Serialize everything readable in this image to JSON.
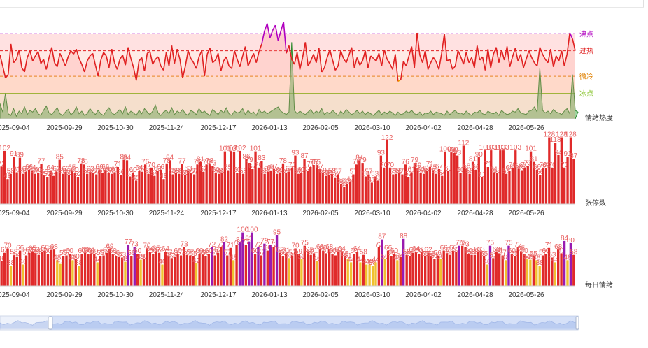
{
  "chart_data": [
    {
      "type": "line",
      "name": "sentiment-heat",
      "series_label": "情绪热度",
      "x_ticks": [
        "2025-09-04",
        "2025-09-29",
        "2025-10-30",
        "2025-11-24",
        "2025-12-17",
        "2026-01-13",
        "2026-02-05",
        "2026-03-10",
        "2026-04-02",
        "2026-04-28",
        "2026-05-26"
      ],
      "thresholds": [
        {
          "label": "沸点",
          "color": "#b000c0",
          "value": 100
        },
        {
          "label": "过热",
          "color": "#e02020",
          "value": 80
        },
        {
          "label": "微冷",
          "color": "#e08000",
          "value": 50
        },
        {
          "label": "冰点",
          "color": "#80c020",
          "value": 30
        }
      ],
      "ylim": [
        0,
        115
      ],
      "zones": [
        {
          "from": 80,
          "to": 115,
          "color": "#ffc8c8"
        },
        {
          "from": 50,
          "to": 80,
          "color": "#ffd8d0"
        },
        {
          "from": 30,
          "to": 50,
          "color": "#ffe8c0"
        },
        {
          "from": 0,
          "to": 30,
          "color": "#e8f5c8"
        }
      ],
      "series": [
        {
          "role": "heat",
          "color_high": "#b000c0",
          "color_mid": "#e02020",
          "color_low": "#f0a000",
          "values": [
            75,
            62,
            48,
            52,
            88,
            66,
            70,
            81,
            60,
            55,
            72,
            80,
            68,
            74,
            79,
            65,
            70,
            58,
            72,
            84,
            66,
            61,
            77,
            70,
            62,
            73,
            80,
            76,
            82,
            71,
            64,
            55,
            68,
            74,
            77,
            63,
            50,
            69,
            78,
            74,
            60,
            82,
            66,
            58,
            70,
            75,
            63,
            84,
            71,
            60,
            45,
            68,
            72,
            56,
            77,
            79,
            64,
            70,
            73,
            62,
            57,
            78,
            62,
            86,
            65,
            82,
            70,
            48,
            62,
            80,
            71,
            66,
            59,
            73,
            80,
            50,
            76,
            83,
            66,
            69,
            77,
            56,
            68,
            73,
            62,
            59,
            80,
            70,
            61,
            74,
            85,
            62,
            70,
            77,
            66,
            79,
            88,
            103,
            112,
            95,
            104,
            110,
            92,
            103,
            114,
            77,
            86,
            70,
            64,
            78,
            58,
            72,
            90,
            62,
            68,
            76,
            66,
            83,
            55,
            60,
            72,
            81,
            69,
            57,
            62,
            80,
            71,
            66,
            75,
            84,
            60,
            72,
            63,
            68,
            80,
            60,
            74,
            71,
            68,
            77,
            62,
            81,
            70,
            65,
            58,
            76,
            44,
            46,
            68,
            62,
            74,
            85,
            60,
            101,
            75,
            66,
            80,
            58,
            66,
            72,
            67,
            58,
            77,
            100,
            68,
            70,
            58,
            62,
            80,
            73,
            64,
            78,
            66,
            72,
            60,
            86,
            69,
            73,
            57,
            82,
            60,
            76,
            84,
            66,
            81,
            69,
            85,
            61,
            73,
            83,
            68,
            76,
            60,
            70,
            80,
            72,
            66,
            62,
            84,
            76,
            70,
            66,
            82,
            61,
            74,
            68,
            80,
            62,
            76,
            101,
            94,
            80
          ]
        },
        {
          "role": "base",
          "color": "#2e8b2e",
          "values": [
            18,
            8,
            30,
            6,
            4,
            12,
            3,
            9,
            6,
            14,
            5,
            10,
            8,
            12,
            6,
            4,
            10,
            15,
            7,
            5,
            9,
            13,
            6,
            4,
            8,
            11,
            5,
            7,
            14,
            6,
            9,
            4,
            6,
            12,
            8,
            5,
            10,
            6,
            4,
            9,
            13,
            7,
            5,
            8,
            11,
            6,
            14,
            5,
            9,
            7,
            4,
            10,
            6,
            12,
            8,
            5,
            9,
            16,
            7,
            4,
            8,
            10,
            6,
            13,
            5,
            9,
            7,
            11,
            6,
            4,
            10,
            8,
            5,
            12,
            7,
            9,
            6,
            4,
            11,
            8,
            5,
            10,
            7,
            13,
            6,
            4,
            9,
            7,
            8,
            12,
            5,
            10,
            6,
            8,
            4,
            11,
            7,
            9,
            6,
            8,
            10,
            12,
            14,
            9,
            7,
            5,
            8,
            90,
            10,
            6,
            9,
            7,
            5,
            8,
            11,
            6,
            9,
            7,
            12,
            5,
            8,
            6,
            10,
            7,
            4,
            9,
            6,
            11,
            8,
            5,
            7,
            10,
            6,
            9,
            5,
            8,
            6,
            4,
            7,
            10,
            5,
            8,
            6,
            9,
            7,
            4,
            8,
            5,
            6,
            9,
            7,
            10,
            6,
            5,
            8,
            4,
            7,
            6,
            9,
            5,
            8,
            7,
            6,
            4,
            9,
            5,
            8,
            10,
            6,
            7,
            5,
            9,
            6,
            4,
            8,
            7,
            10,
            6,
            5,
            9,
            7,
            6,
            8,
            4,
            10,
            7,
            5,
            6,
            9,
            8,
            12,
            7,
            6,
            5,
            9,
            10,
            14,
            8,
            60,
            10,
            7,
            9,
            6,
            11,
            8,
            7,
            5,
            9,
            12,
            6,
            52,
            10,
            8
          ]
        }
      ]
    },
    {
      "type": "bar",
      "name": "limit-up-count",
      "series_label": "张停数",
      "x_ticks": [
        "2025-09-04",
        "2025-09-29",
        "2025-10-30",
        "2025-11-24",
        "2025-12-17",
        "2026-01-13",
        "2026-02-05",
        "2026-03-10",
        "2026-04-02",
        "2026-04-28",
        "2026-05-26"
      ],
      "ylim": [
        0,
        130
      ],
      "color": "#e02a2a",
      "label_color": "#e86060",
      "values": [
        72,
        102,
        48,
        58,
        91,
        61,
        89,
        58,
        62,
        66,
        64,
        58,
        60,
        77,
        56,
        52,
        64,
        54,
        62,
        85,
        58,
        62,
        55,
        65,
        60,
        52,
        78,
        76,
        58,
        62,
        59,
        57,
        66,
        59,
        66,
        60,
        58,
        61,
        71,
        56,
        85,
        84,
        53,
        60,
        45,
        64,
        62,
        76,
        58,
        70,
        54,
        63,
        66,
        48,
        78,
        84,
        57,
        59,
        58,
        77,
        55,
        63,
        59,
        57,
        76,
        81,
        62,
        76,
        78,
        73,
        60,
        58,
        59,
        101,
        65,
        102,
        100,
        60,
        102,
        58,
        86,
        79,
        67,
        101,
        70,
        83,
        58,
        62,
        64,
        67,
        58,
        60,
        78,
        59,
        62,
        70,
        93,
        58,
        60,
        87,
        63,
        71,
        75,
        75,
        67,
        59,
        54,
        55,
        58,
        50,
        57,
        38,
        33,
        38,
        42,
        57,
        76,
        84,
        79,
        53,
        57,
        41,
        53,
        45,
        93,
        70,
        122,
        70,
        57,
        58,
        59,
        57,
        76,
        52,
        61,
        79,
        69,
        60,
        58,
        63,
        71,
        65,
        58,
        67,
        54,
        100,
        63,
        99,
        98,
        93,
        60,
        112,
        68,
        58,
        81,
        66,
        90,
        51,
        103,
        71,
        103,
        61,
        59,
        103,
        103,
        58,
        64,
        70,
        103,
        68,
        65,
        70,
        73,
        101,
        81,
        66,
        56,
        70,
        69,
        128,
        70,
        118,
        94,
        128,
        70,
        91,
        128,
        87
      ]
    },
    {
      "type": "bar",
      "name": "daily-sentiment",
      "series_label": "每日情绪",
      "x_ticks": [
        "2025-09-04",
        "2025-09-29",
        "2025-10-30",
        "2025-11-24",
        "2025-12-17",
        "2026-01-13",
        "2026-02-05",
        "2026-03-10",
        "2026-04-02",
        "2026-04-28",
        "2026-05-26"
      ],
      "ylim": [
        0,
        110
      ],
      "colors": {
        "hot": "#9a1ab0",
        "warm": "#e02a2a",
        "cool": "#f0c030"
      },
      "label_color": "#e86060",
      "values": [
        46,
        62,
        70,
        38,
        58,
        54,
        66,
        40,
        57,
        62,
        65,
        62,
        58,
        63,
        66,
        60,
        67,
        68,
        48,
        41,
        56,
        57,
        60,
        48,
        50,
        38,
        60,
        62,
        60,
        61,
        59,
        44,
        56,
        57,
        62,
        69,
        60,
        56,
        54,
        53,
        45,
        77,
        56,
        73,
        60,
        49,
        50,
        70,
        64,
        60,
        65,
        62,
        40,
        64,
        57,
        52,
        54,
        60,
        57,
        73,
        58,
        57,
        55,
        42,
        60,
        59,
        56,
        60,
        72,
        57,
        62,
        72,
        82,
        57,
        71,
        48,
        76,
        81,
        100,
        77,
        83,
        100,
        60,
        72,
        57,
        79,
        66,
        77,
        72,
        95,
        62,
        56,
        61,
        52,
        57,
        70,
        59,
        50,
        75,
        63,
        58,
        61,
        46,
        68,
        66,
        61,
        68,
        60,
        57,
        63,
        64,
        55,
        51,
        44,
        60,
        64,
        44,
        58,
        40,
        40,
        38,
        44,
        72,
        87,
        50,
        66,
        56,
        60,
        48,
        54,
        88,
        58,
        55,
        62,
        64,
        60,
        63,
        55,
        62,
        55,
        51,
        56,
        50,
        66,
        62,
        58,
        66,
        63,
        75,
        75,
        73,
        60,
        58,
        58,
        63,
        63,
        55,
        40,
        75,
        52,
        63,
        61,
        57,
        48,
        75,
        60,
        55,
        72,
        65,
        60,
        50,
        49,
        55,
        48,
        38,
        57,
        60,
        71,
        53,
        44,
        68,
        61,
        84,
        48,
        80,
        58
      ],
      "levels": [
        1,
        1,
        1,
        2,
        1,
        1,
        1,
        2,
        1,
        1,
        1,
        1,
        1,
        1,
        1,
        1,
        1,
        1,
        2,
        2,
        1,
        1,
        1,
        2,
        1,
        2,
        1,
        1,
        1,
        1,
        1,
        2,
        1,
        1,
        1,
        1,
        1,
        1,
        1,
        1,
        2,
        0,
        1,
        0,
        1,
        2,
        1,
        1,
        1,
        1,
        1,
        1,
        2,
        1,
        1,
        1,
        1,
        1,
        1,
        1,
        1,
        1,
        1,
        2,
        1,
        1,
        1,
        1,
        0,
        1,
        1,
        1,
        0,
        1,
        1,
        2,
        1,
        0,
        0,
        1,
        0,
        0,
        1,
        0,
        1,
        0,
        1,
        0,
        1,
        0,
        1,
        1,
        1,
        2,
        1,
        1,
        1,
        2,
        1,
        1,
        1,
        1,
        2,
        1,
        1,
        1,
        1,
        1,
        1,
        1,
        1,
        1,
        2,
        2,
        1,
        1,
        2,
        1,
        2,
        2,
        2,
        2,
        1,
        0,
        2,
        1,
        1,
        1,
        2,
        1,
        0,
        1,
        1,
        1,
        1,
        1,
        1,
        1,
        1,
        1,
        1,
        1,
        2,
        1,
        1,
        1,
        1,
        1,
        0,
        1,
        1,
        1,
        1,
        1,
        1,
        1,
        1,
        2,
        0,
        1,
        1,
        1,
        1,
        2,
        0,
        1,
        1,
        1,
        1,
        1,
        2,
        2,
        1,
        2,
        2,
        1,
        1,
        1,
        1,
        2,
        1,
        1,
        0,
        2,
        0,
        1
      ]
    }
  ],
  "slider": {
    "label": ""
  }
}
